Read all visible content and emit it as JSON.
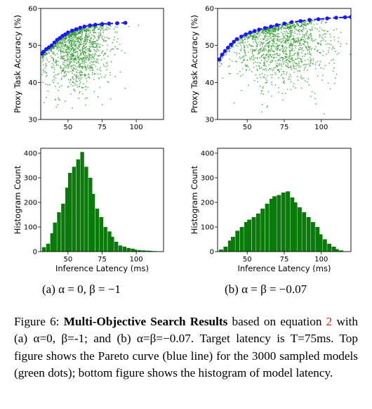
{
  "figure": {
    "subcaptions": [
      "(a) α = 0, β = −1",
      "(b) α = β = −0.07"
    ],
    "caption": {
      "label": "Figure 6:",
      "title": "Multi-Objective Search Results",
      "text_1": " based on equation ",
      "ref": "2",
      "text_2": " with (a) α=0, β=-1; and (b) α=β=−0.07. Target latency is T=75ms. Top figure shows the Pareto curve (blue line) for the 3000 sampled models (green dots); bottom figure shows the histogram of model latency."
    }
  },
  "colors": {
    "pareto": "#1a1aee",
    "samples": "#2e9a2e",
    "bars": "#0a7a0a"
  },
  "chart_data": [
    {
      "type": "scatter",
      "xlabel": "",
      "ylabel": "Proxy Task Accuracy (%)",
      "xlim": [
        30,
        120
      ],
      "ylim": [
        30,
        60
      ],
      "xticks": [
        50,
        75,
        100
      ],
      "yticks": [
        30,
        40,
        50,
        60
      ],
      "sample_count": 3000,
      "pareto_x": [
        31,
        32,
        34,
        36,
        38,
        40,
        42,
        44,
        46,
        48,
        50,
        53,
        56,
        59,
        62,
        66,
        70,
        75,
        80,
        86,
        92
      ],
      "pareto_y": [
        47.8,
        48.3,
        49.0,
        49.5,
        50.0,
        50.8,
        51.5,
        52.0,
        52.6,
        53.0,
        53.5,
        54.0,
        54.4,
        54.8,
        55.1,
        55.4,
        55.6,
        55.8,
        55.9,
        56.0,
        56.1
      ],
      "cloud_center": [
        56,
        50
      ],
      "cloud_spread": [
        12,
        5
      ]
    },
    {
      "type": "bar",
      "xlabel": "Inference Latency (ms)",
      "ylabel": "Histogram Count",
      "xlim": [
        30,
        120
      ],
      "ylim": [
        0,
        420
      ],
      "xticks": [
        50,
        75,
        100
      ],
      "yticks": [
        0,
        100,
        200,
        300,
        400
      ],
      "bin_width": 2.8,
      "bins_left": [
        31,
        34,
        37,
        39,
        42,
        45,
        48,
        50,
        53,
        56,
        59,
        62,
        65,
        67,
        70,
        73,
        76,
        79,
        81,
        84,
        87,
        90,
        93,
        96,
        98,
        101,
        104,
        107,
        109,
        112
      ],
      "values": [
        18,
        32,
        75,
        118,
        160,
        195,
        260,
        320,
        345,
        375,
        405,
        345,
        300,
        235,
        175,
        140,
        100,
        82,
        60,
        40,
        25,
        20,
        15,
        12,
        8,
        6,
        5,
        4,
        3,
        2
      ]
    },
    {
      "type": "scatter",
      "xlabel": "",
      "ylabel": "Proxy Task Accuracy (%)",
      "xlim": [
        30,
        120
      ],
      "ylim": [
        30,
        60
      ],
      "xticks": [
        50,
        75,
        100
      ],
      "yticks": [
        30,
        40,
        50,
        60
      ],
      "sample_count": 3000,
      "pareto_x": [
        31,
        33,
        35,
        37,
        39,
        41,
        43,
        46,
        49,
        52,
        55,
        58,
        62,
        66,
        70,
        75,
        80,
        86,
        92,
        98,
        104,
        110,
        116,
        120
      ],
      "pareto_y": [
        46.2,
        47.5,
        48.5,
        49.4,
        50.2,
        51.0,
        51.7,
        52.4,
        53.0,
        53.5,
        53.9,
        54.3,
        54.7,
        55.1,
        55.5,
        55.9,
        56.3,
        56.6,
        56.9,
        57.1,
        57.3,
        57.5,
        57.6,
        57.7
      ],
      "cloud_center": [
        72,
        51
      ],
      "cloud_spread": [
        16,
        5
      ]
    },
    {
      "type": "bar",
      "xlabel": "Inference Latency (ms)",
      "ylabel": "Histogram Count",
      "xlim": [
        30,
        120
      ],
      "ylim": [
        0,
        420
      ],
      "xticks": [
        50,
        75,
        100
      ],
      "yticks": [
        0,
        100,
        200,
        300,
        400
      ],
      "bin_width": 2.8,
      "bins_left": [
        31,
        34,
        37,
        39,
        42,
        45,
        48,
        50,
        53,
        56,
        59,
        62,
        65,
        67,
        70,
        73,
        76,
        79,
        81,
        84,
        87,
        90,
        93,
        96,
        98,
        101,
        104,
        107,
        109,
        112
      ],
      "values": [
        8,
        20,
        45,
        60,
        85,
        100,
        120,
        130,
        140,
        155,
        175,
        195,
        215,
        225,
        230,
        240,
        245,
        220,
        200,
        180,
        160,
        140,
        120,
        100,
        70,
        50,
        32,
        20,
        10,
        5
      ]
    }
  ]
}
